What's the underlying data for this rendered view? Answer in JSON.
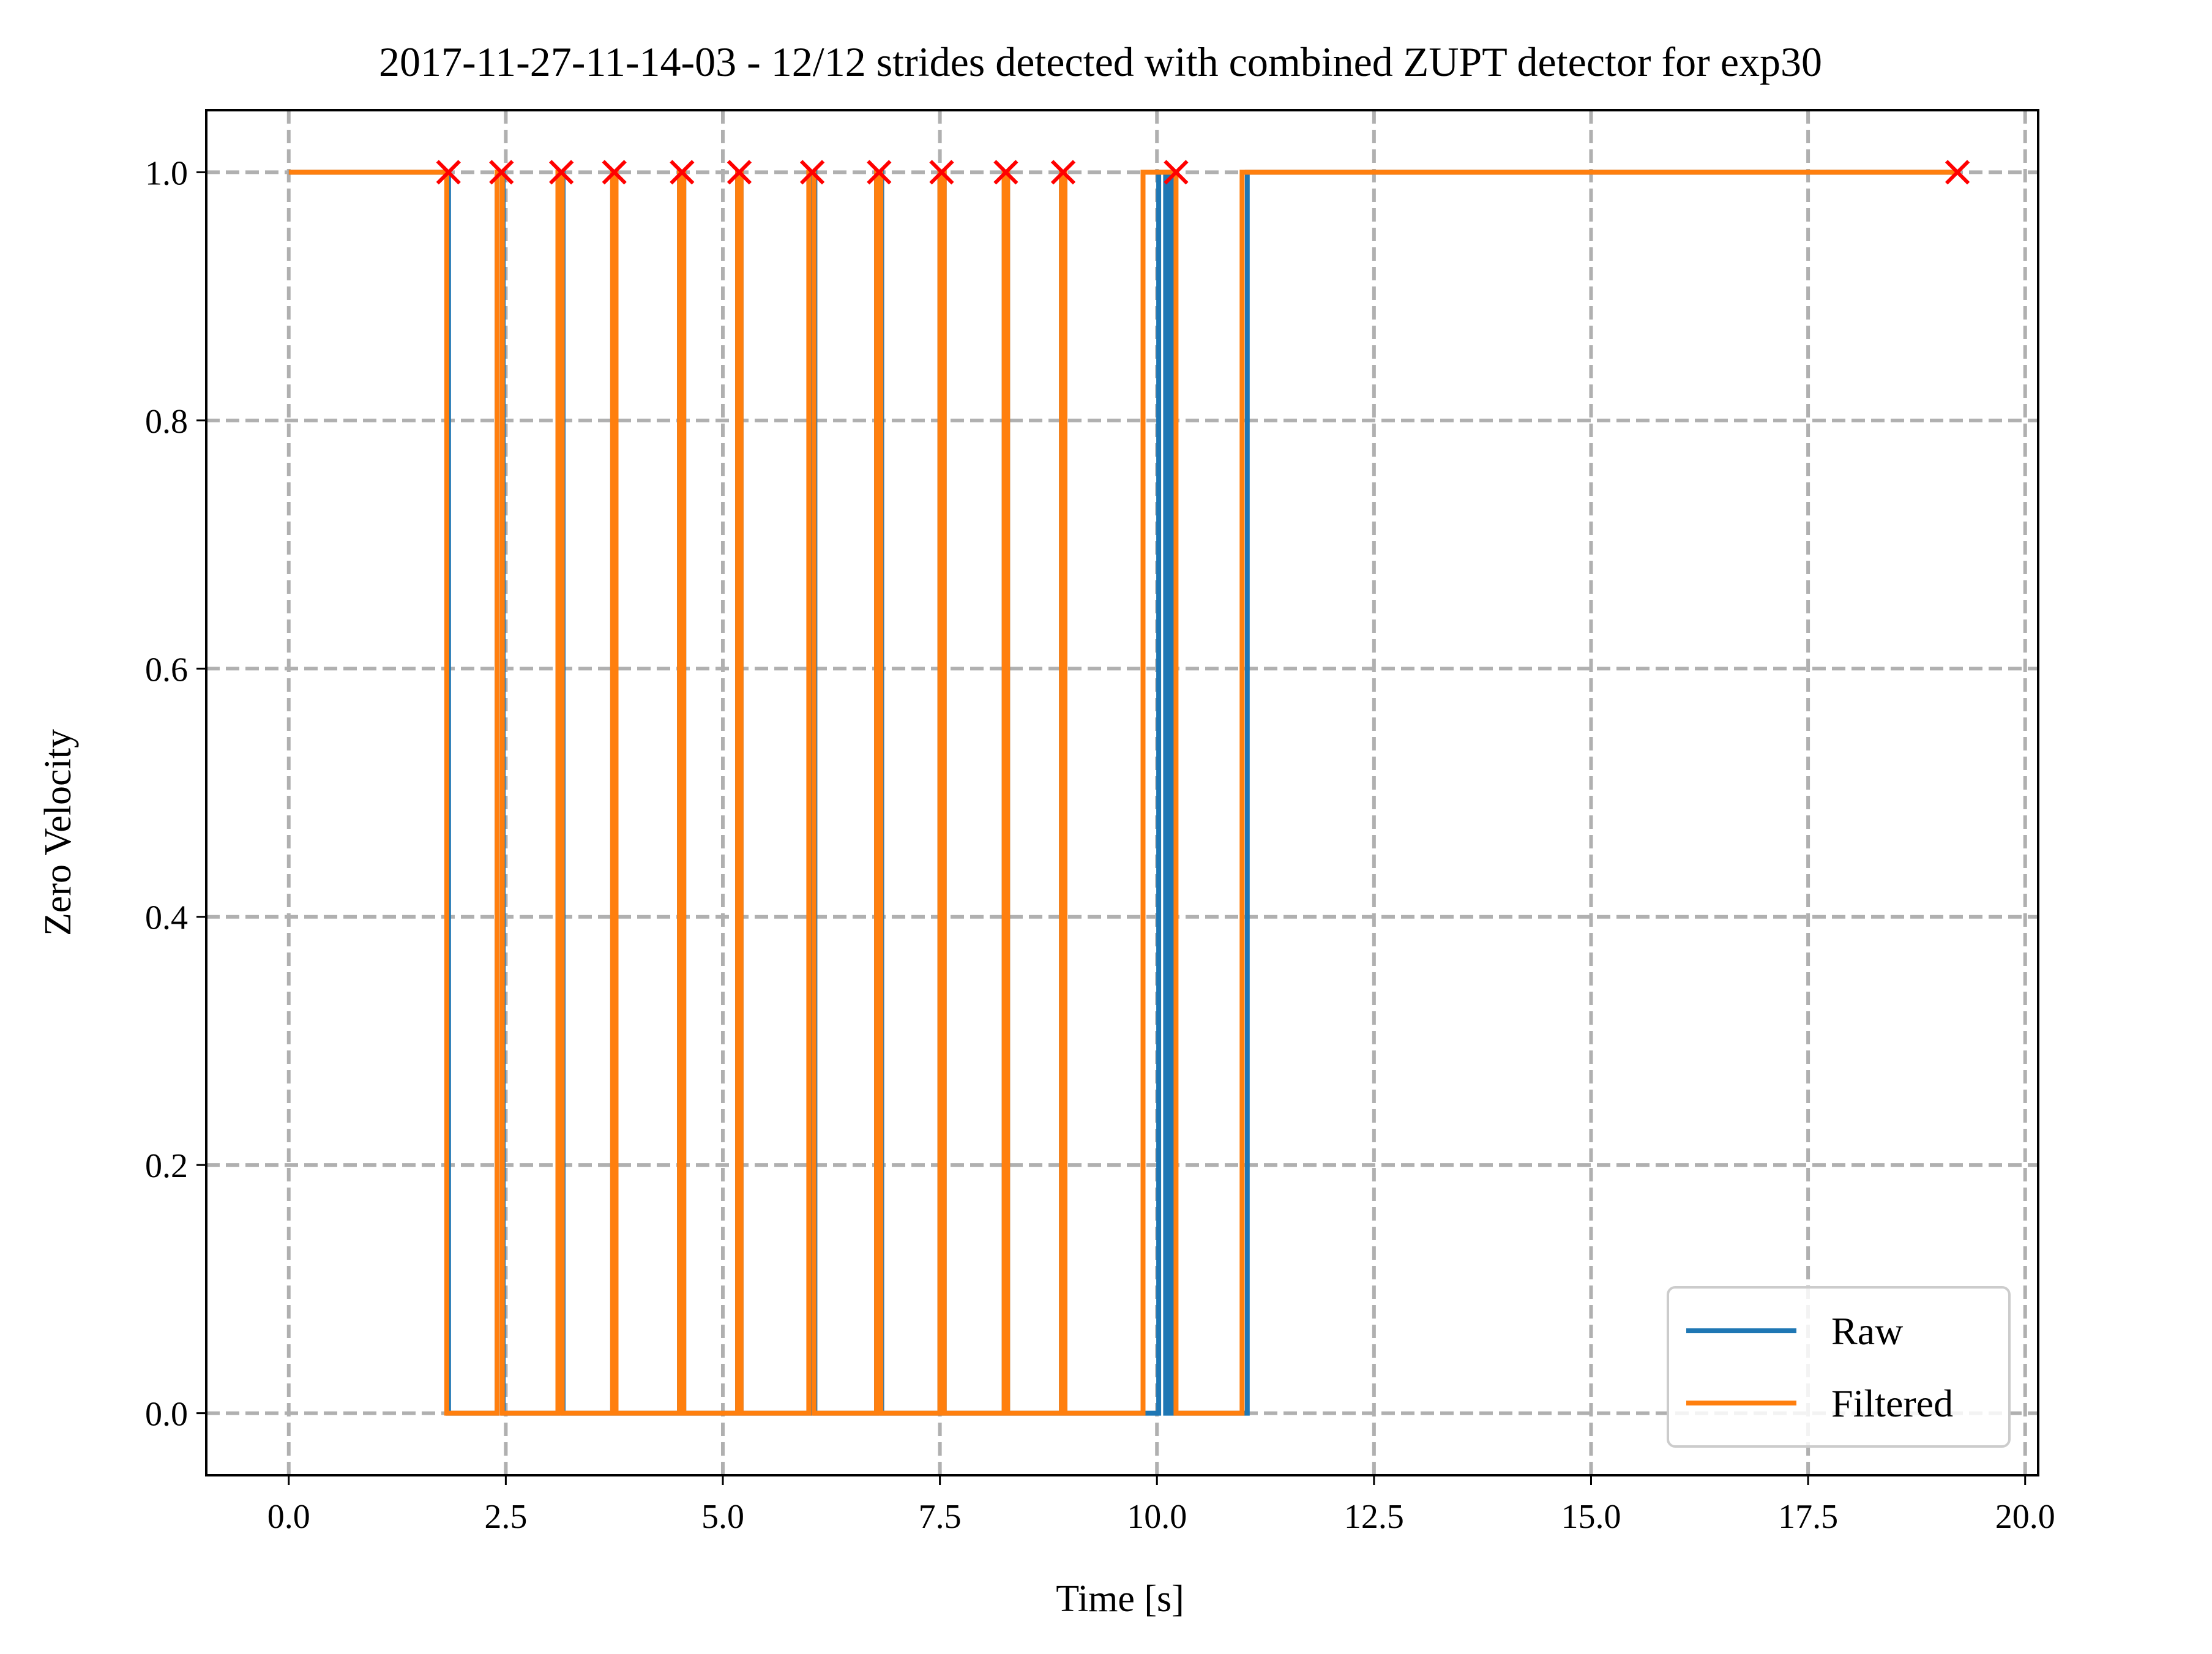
{
  "chart_data": {
    "type": "line",
    "title": "2017-11-27-11-14-03 - 12/12 strides detected with combined ZUPT detector for exp30",
    "xlabel": "Time [s]",
    "ylabel": "Zero Velocity",
    "xlim": [
      -0.95,
      20.15
    ],
    "ylim": [
      -0.05,
      1.05
    ],
    "x_ticks": [
      0.0,
      2.5,
      5.0,
      7.5,
      10.0,
      12.5,
      15.0,
      17.5,
      20.0
    ],
    "x_tick_labels": [
      "0.0",
      "2.5",
      "5.0",
      "7.5",
      "10.0",
      "12.5",
      "15.0",
      "17.5",
      "20.0"
    ],
    "y_ticks": [
      0.0,
      0.2,
      0.4,
      0.6,
      0.8,
      1.0
    ],
    "y_tick_labels": [
      "0.0",
      "0.2",
      "0.4",
      "0.6",
      "0.8",
      "1.0"
    ],
    "grid": true,
    "legend_position": "lower-right",
    "series": [
      {
        "name": "Raw",
        "color": "#1f77b4",
        "step_points": [
          [
            0,
            1
          ],
          [
            1.84,
            1
          ],
          [
            1.84,
            0
          ],
          [
            2.4,
            0
          ],
          [
            2.4,
            1
          ],
          [
            2.47,
            1
          ],
          [
            2.47,
            0
          ],
          [
            3.1,
            0
          ],
          [
            3.1,
            1
          ],
          [
            3.16,
            1
          ],
          [
            3.16,
            0
          ],
          [
            3.73,
            0
          ],
          [
            3.73,
            1
          ],
          [
            3.77,
            1
          ],
          [
            3.77,
            0
          ],
          [
            4.5,
            0
          ],
          [
            4.5,
            1
          ],
          [
            4.55,
            1
          ],
          [
            4.55,
            0
          ],
          [
            5.17,
            0
          ],
          [
            5.17,
            1
          ],
          [
            5.21,
            1
          ],
          [
            5.21,
            0
          ],
          [
            6.0,
            0
          ],
          [
            6.0,
            1
          ],
          [
            6.06,
            1
          ],
          [
            6.06,
            0
          ],
          [
            6.77,
            0
          ],
          [
            6.77,
            1
          ],
          [
            6.83,
            1
          ],
          [
            6.83,
            0
          ],
          [
            7.5,
            0
          ],
          [
            7.5,
            1
          ],
          [
            7.55,
            1
          ],
          [
            7.55,
            0
          ],
          [
            8.24,
            0
          ],
          [
            8.24,
            1
          ],
          [
            8.28,
            1
          ],
          [
            8.28,
            0
          ],
          [
            8.9,
            0
          ],
          [
            8.9,
            1
          ],
          [
            8.94,
            1
          ],
          [
            8.94,
            0
          ],
          [
            10.02,
            0
          ],
          [
            10.02,
            1
          ],
          [
            10.1,
            1
          ],
          [
            10.1,
            0
          ],
          [
            10.15,
            0
          ],
          [
            10.15,
            1
          ],
          [
            10.2,
            1
          ],
          [
            10.2,
            0
          ],
          [
            11.04,
            0
          ],
          [
            11.04,
            1
          ],
          [
            19.22,
            1
          ]
        ]
      },
      {
        "name": "Filtered",
        "color": "#ff7f0e",
        "step_points": [
          [
            0,
            1
          ],
          [
            1.82,
            1
          ],
          [
            1.82,
            0
          ],
          [
            2.4,
            0
          ],
          [
            2.4,
            1
          ],
          [
            2.46,
            1
          ],
          [
            2.46,
            0
          ],
          [
            3.1,
            0
          ],
          [
            3.1,
            1
          ],
          [
            3.15,
            1
          ],
          [
            3.15,
            0
          ],
          [
            3.73,
            0
          ],
          [
            3.73,
            1
          ],
          [
            3.77,
            1
          ],
          [
            3.77,
            0
          ],
          [
            4.5,
            0
          ],
          [
            4.5,
            1
          ],
          [
            4.55,
            1
          ],
          [
            4.55,
            0
          ],
          [
            5.17,
            0
          ],
          [
            5.17,
            1
          ],
          [
            5.21,
            1
          ],
          [
            5.21,
            0
          ],
          [
            5.99,
            0
          ],
          [
            5.99,
            1
          ],
          [
            6.05,
            1
          ],
          [
            6.05,
            0
          ],
          [
            6.77,
            0
          ],
          [
            6.77,
            1
          ],
          [
            6.82,
            1
          ],
          [
            6.82,
            0
          ],
          [
            7.5,
            0
          ],
          [
            7.5,
            1
          ],
          [
            7.55,
            1
          ],
          [
            7.55,
            0
          ],
          [
            8.24,
            0
          ],
          [
            8.24,
            1
          ],
          [
            8.28,
            1
          ],
          [
            8.28,
            0
          ],
          [
            8.9,
            0
          ],
          [
            8.9,
            1
          ],
          [
            8.94,
            1
          ],
          [
            8.94,
            0
          ],
          [
            9.84,
            0
          ],
          [
            9.84,
            1
          ],
          [
            10.22,
            1
          ],
          [
            10.22,
            0
          ],
          [
            10.98,
            0
          ],
          [
            10.98,
            1
          ],
          [
            19.22,
            1
          ]
        ]
      }
    ],
    "markers": {
      "marker": "x",
      "color": "#ff0000",
      "x": [
        1.84,
        2.45,
        3.14,
        3.75,
        4.53,
        5.19,
        6.03,
        6.8,
        7.52,
        8.26,
        8.92,
        10.22,
        19.22
      ],
      "y": [
        1,
        1,
        1,
        1,
        1,
        1,
        1,
        1,
        1,
        1,
        1,
        1,
        1
      ]
    }
  }
}
